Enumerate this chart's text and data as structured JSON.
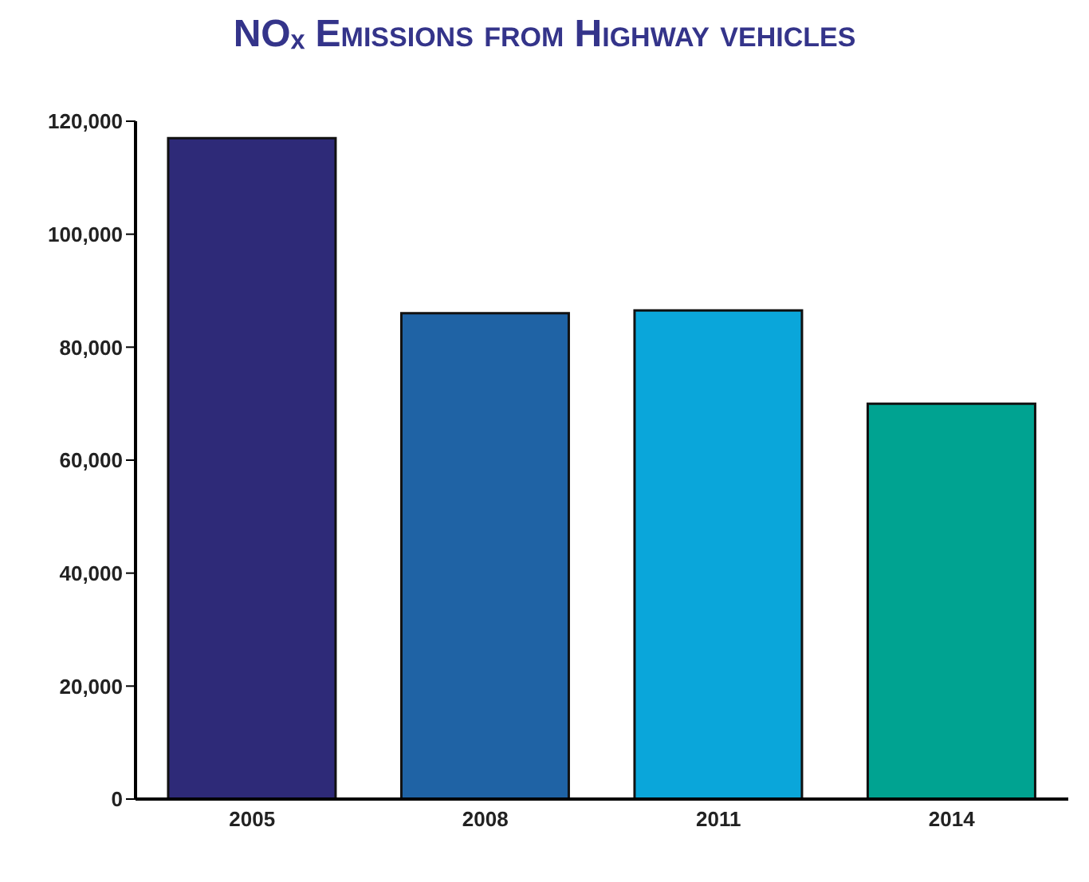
{
  "chart_data": {
    "type": "bar",
    "title": "NOₓ Emissions from Highway vehicles",
    "categories": [
      "2005",
      "2008",
      "2011",
      "2014"
    ],
    "values": [
      117000,
      86000,
      86500,
      70000
    ],
    "colors": [
      "#2e2a78",
      "#1f63a5",
      "#0aa6da",
      "#00a391"
    ],
    "ylim": [
      0,
      120000
    ],
    "yticks": [
      0,
      {
        "value": 20000,
        "label": "20,000"
      },
      {
        "value": 40000,
        "label": "40,000"
      },
      {
        "value": 60000,
        "label": "60,000"
      },
      {
        "value": 80000,
        "label": "80,000"
      },
      {
        "value": 100000,
        "label": "100,000"
      },
      {
        "value": 120000,
        "label": "120,000"
      }
    ],
    "grid": false
  }
}
